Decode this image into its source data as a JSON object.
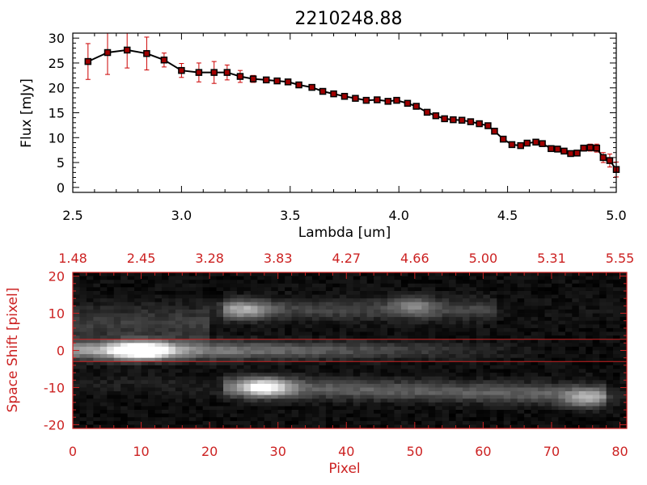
{
  "chart_data": [
    {
      "type": "line",
      "title": "2210248.88",
      "xlabel": "Lambda [um]",
      "ylabel": "Flux [mJy]",
      "xlim": [
        2.5,
        5.0
      ],
      "ylim": [
        -1,
        31
      ],
      "x_ticks": [
        "2.5",
        "3.0",
        "3.5",
        "4.0",
        "4.5",
        "5.0"
      ],
      "x_tick_values": [
        2.5,
        3.0,
        3.5,
        4.0,
        4.5,
        5.0
      ],
      "y_ticks": [
        "0",
        "5",
        "10",
        "15",
        "20",
        "25",
        "30"
      ],
      "y_tick_values": [
        0,
        5,
        10,
        15,
        20,
        25,
        30
      ],
      "line_color": "#000000",
      "marker_color": "#a00000",
      "error_color": "#cc0000",
      "series": [
        {
          "x": [
            2.57,
            2.66,
            2.75,
            2.84,
            2.92,
            3.0,
            3.08,
            3.15,
            3.21,
            3.27,
            3.33,
            3.39,
            3.44,
            3.49,
            3.54,
            3.6,
            3.65,
            3.7,
            3.75,
            3.8,
            3.85,
            3.9,
            3.95,
            3.99,
            4.04,
            4.08,
            4.13,
            4.17,
            4.21,
            4.25,
            4.29,
            4.33,
            4.37,
            4.41,
            4.44,
            4.48,
            4.52,
            4.56,
            4.59,
            4.63,
            4.66,
            4.7,
            4.73,
            4.76,
            4.79,
            4.82,
            4.85,
            4.88,
            4.91,
            4.94,
            4.97,
            5.0
          ],
          "y": [
            25.3,
            27.1,
            27.6,
            26.9,
            25.6,
            23.5,
            23.1,
            23.1,
            23.1,
            22.3,
            21.8,
            21.6,
            21.4,
            21.2,
            20.6,
            20.1,
            19.3,
            18.8,
            18.3,
            17.9,
            17.5,
            17.6,
            17.3,
            17.5,
            16.9,
            16.3,
            15.1,
            14.4,
            13.8,
            13.6,
            13.5,
            13.2,
            12.8,
            12.4,
            11.3,
            9.7,
            8.6,
            8.4,
            8.9,
            9.1,
            8.8,
            7.8,
            7.7,
            7.3,
            6.8,
            6.9,
            7.9,
            8.0,
            7.9,
            6.0,
            5.4,
            3.6
          ],
          "err": [
            3.6,
            4.4,
            3.6,
            3.3,
            1.4,
            1.4,
            1.9,
            2.2,
            1.5,
            1.2,
            0.7,
            0.5,
            0.5,
            0.4,
            0.4,
            0.4,
            0.4,
            0.4,
            0.4,
            0.4,
            0.4,
            0.4,
            0.4,
            0.4,
            0.4,
            0.4,
            0.4,
            0.4,
            0.4,
            0.4,
            0.4,
            0.4,
            0.4,
            0.4,
            0.5,
            0.5,
            0.5,
            0.5,
            0.5,
            0.5,
            0.5,
            0.5,
            0.5,
            0.5,
            0.5,
            0.5,
            0.6,
            0.7,
            0.8,
            1.0,
            1.3,
            1.5
          ]
        }
      ]
    },
    {
      "type": "heatmap",
      "xlabel": "Pixel",
      "ylabel": "Space Shift [pixel]",
      "xlim": [
        0,
        81
      ],
      "ylim": [
        -21,
        21
      ],
      "x_ticks": [
        "0",
        "10",
        "20",
        "30",
        "40",
        "50",
        "60",
        "70",
        "80"
      ],
      "x_tick_values": [
        0,
        10,
        20,
        30,
        40,
        50,
        60,
        70,
        80
      ],
      "y_ticks": [
        "-20",
        "-10",
        "0",
        "10",
        "20"
      ],
      "y_tick_values": [
        -20,
        -10,
        0,
        10,
        20
      ],
      "top_ticks": [
        "1.48",
        "2.45",
        "3.28",
        "3.83",
        "4.27",
        "4.66",
        "5.00",
        "5.31",
        "5.55"
      ],
      "top_tick_values": [
        0,
        10,
        20,
        30,
        40,
        50,
        60,
        70,
        80
      ],
      "extraction_aperture": [
        -3,
        3
      ],
      "axis_color": "#cc2222",
      "features": [
        {
          "x": 10,
          "y": 0,
          "peak": 1.0,
          "trace_end": 65
        },
        {
          "x": 28,
          "y": -10,
          "peak": 0.75,
          "trace_end": 75
        },
        {
          "x": 25,
          "y": 11,
          "peak": 0.45,
          "trace_end": 60
        },
        {
          "x": 75,
          "y": -13,
          "peak": 0.4,
          "trace_end": 80
        }
      ]
    }
  ]
}
